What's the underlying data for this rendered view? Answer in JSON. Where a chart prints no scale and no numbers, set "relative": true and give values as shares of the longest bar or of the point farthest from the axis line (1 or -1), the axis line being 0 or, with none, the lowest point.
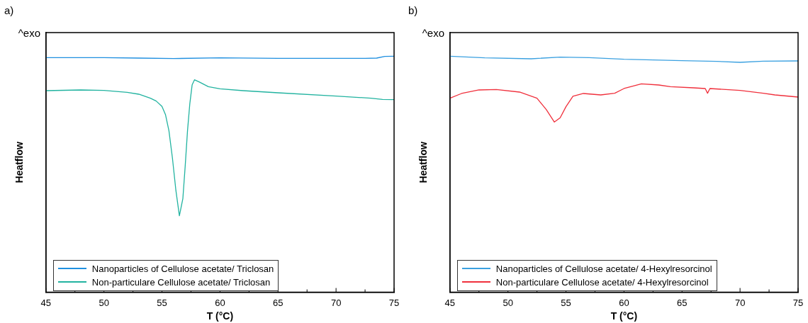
{
  "chart_data": [
    {
      "type": "line",
      "title": "a)",
      "xlabel": "T (°C)",
      "ylabel": "Heatflow",
      "annotations": [
        "^exo"
      ],
      "relative": true,
      "grid": false,
      "legend": "bottom left",
      "marker": "none",
      "line_style": "solid",
      "xlim": [
        45,
        75
      ],
      "xticks": [
        45,
        {
          "value": 47.5,
          "label": null
        },
        50,
        {
          "value": 52.5,
          "label": null
        },
        55,
        {
          "value": 57.5,
          "label": null
        },
        60,
        {
          "value": 62.5,
          "label": null
        },
        65,
        {
          "value": 67.5,
          "label": null
        },
        70,
        {
          "value": 72.5,
          "label": null
        },
        75
      ],
      "series": [
        {
          "name": "Nanoparticles of Cellulose acetate/ Triclosan",
          "color": "#1f8fe0",
          "x": [
            45,
            50,
            53,
            56,
            60,
            65,
            70,
            72.5,
            73.5,
            74.2,
            75
          ],
          "values": [
            0.994,
            0.994,
            0.992,
            0.99,
            0.993,
            0.991,
            0.991,
            0.991,
            0.992,
            0.999,
            1
          ]
        },
        {
          "name": "Non-particulare Cellulose acetate/ Triclosan",
          "color": "#22b3a0",
          "x": [
            45,
            48,
            50,
            52,
            53,
            54,
            54.5,
            55,
            55.3,
            55.6,
            55.9,
            56.2,
            56.5,
            56.8,
            57,
            57.2,
            57.4,
            57.6,
            57.8,
            58.2,
            59,
            60,
            62,
            65,
            70,
            73,
            74,
            75
          ],
          "values": [
            0.854,
            0.857,
            0.855,
            0.847,
            0.839,
            0.822,
            0.81,
            0.787,
            0.753,
            0.684,
            0.569,
            0.431,
            0.324,
            0.397,
            0.534,
            0.684,
            0.799,
            0.879,
            0.9,
            0.891,
            0.871,
            0.862,
            0.854,
            0.845,
            0.831,
            0.822,
            0.817,
            0.816
          ]
        }
      ]
    },
    {
      "type": "line",
      "title": "b)",
      "xlabel": "T (°C)",
      "ylabel": "Heatflow",
      "annotations": [
        "^exo"
      ],
      "relative": true,
      "grid": false,
      "legend": "bottom left",
      "marker": "none",
      "line_style": "solid",
      "xlim": [
        45,
        75
      ],
      "xticks": [
        45,
        {
          "value": 47.5,
          "label": null
        },
        50,
        {
          "value": 52.5,
          "label": null
        },
        55,
        {
          "value": 57.5,
          "label": null
        },
        60,
        {
          "value": 62.5,
          "label": null
        },
        65,
        {
          "value": 67.5,
          "label": null
        },
        70,
        {
          "value": 72.5,
          "label": null
        },
        75
      ],
      "series": [
        {
          "name": "Nanoparticles of Cellulose acetate/ 4-Hexylresorcinol",
          "color": "#3aa0e0",
          "x": [
            45,
            48,
            52,
            54.5,
            57,
            60,
            65,
            68,
            70,
            72,
            75
          ],
          "values": [
            1,
            0.993,
            0.989,
            0.996,
            0.994,
            0.987,
            0.981,
            0.978,
            0.974,
            0.979,
            0.98
          ]
        },
        {
          "name": "Non-particulare Cellulose acetate/ 4-Hexylresorcinol",
          "color": "#f0303c",
          "x": [
            45,
            46,
            47.5,
            49,
            51,
            52.5,
            53.3,
            54,
            54.5,
            55,
            55.6,
            56.5,
            58,
            59.2,
            60,
            61.5,
            63,
            64,
            66,
            67,
            67.2,
            67.4,
            70,
            72,
            73,
            75
          ],
          "values": [
            0.822,
            0.842,
            0.857,
            0.859,
            0.848,
            0.822,
            0.774,
            0.721,
            0.739,
            0.786,
            0.83,
            0.842,
            0.836,
            0.843,
            0.863,
            0.883,
            0.878,
            0.871,
            0.866,
            0.863,
            0.843,
            0.863,
            0.855,
            0.843,
            0.836,
            0.827
          ]
        }
      ]
    }
  ]
}
